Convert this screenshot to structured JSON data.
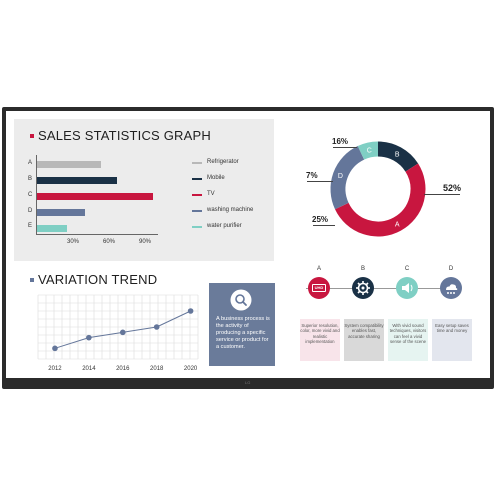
{
  "screen_brand": "LG",
  "sales": {
    "title": "SALES STATISTICS GRAPH",
    "categories": [
      "A",
      "B",
      "C",
      "D",
      "E"
    ],
    "x_ticks": [
      "30%",
      "60%",
      "90%"
    ]
  },
  "legend": [
    {
      "label": "Refrigerator",
      "color": "#b8b8b8"
    },
    {
      "label": "Mobile",
      "color": "#1a3146"
    },
    {
      "label": "TV",
      "color": "#c8163f"
    },
    {
      "label": "washing machine",
      "color": "#64769a"
    },
    {
      "label": "water purifier",
      "color": "#7fcfc4"
    }
  ],
  "trend": {
    "title": "VARIATION TREND"
  },
  "donut": {
    "labels": [
      "16%",
      "7%",
      "25%",
      "52%"
    ]
  },
  "info_box": {
    "text": "A business process is the activity of producing a specific service or product for a customer."
  },
  "features": [
    {
      "letter": "A",
      "icon": "uhd-icon",
      "badge": "UHD",
      "circle_color": "#c8163f",
      "card_bg": "#f8e4ea",
      "text": "Superior resolution, color, more vivid and realistic implementation"
    },
    {
      "letter": "B",
      "icon": "gear-icon",
      "circle_color": "#1a3146",
      "card_bg": "#d9d9d9",
      "text": "System compatibility enables fast, accurate sharing"
    },
    {
      "letter": "C",
      "icon": "speaker-icon",
      "circle_color": "#7fcfc4",
      "card_bg": "#e6f4f1",
      "text": "With vivid sound techniques, visitors can feel a vivid sense of the scene"
    },
    {
      "letter": "D",
      "icon": "cloud-icon",
      "circle_color": "#64769a",
      "card_bg": "#e3e6ee",
      "text": "Easy setup saves time and money"
    }
  ],
  "chart_data": [
    {
      "type": "bar",
      "orientation": "horizontal",
      "title": "SALES STATISTICS GRAPH",
      "categories": [
        "A",
        "B",
        "C",
        "D",
        "E"
      ],
      "values": [
        53,
        67,
        97,
        40,
        25
      ],
      "colors": [
        "#b8b8b8",
        "#1a3146",
        "#c8163f",
        "#64769a",
        "#7fcfc4"
      ],
      "x_ticks": [
        "30%",
        "60%",
        "90%"
      ],
      "xlim": [
        0,
        100
      ]
    },
    {
      "type": "line",
      "title": "VARIATION TREND",
      "x": [
        2012,
        2014,
        2016,
        2018,
        2020
      ],
      "y": [
        1,
        2,
        2.5,
        3,
        4.5
      ],
      "ylim": [
        0,
        6
      ],
      "grid": true,
      "color": "#64769a"
    },
    {
      "type": "pie",
      "donut": true,
      "slices": [
        {
          "label": "A",
          "value": 52,
          "display": "52%",
          "color": "#c8163f"
        },
        {
          "label": "B",
          "value": 16,
          "display": "16%",
          "color": "#1a3146"
        },
        {
          "label": "C",
          "value": 7,
          "display": "7%",
          "color": "#7fcfc4"
        },
        {
          "label": "D",
          "value": 25,
          "display": "25%",
          "color": "#64769a"
        }
      ]
    }
  ]
}
